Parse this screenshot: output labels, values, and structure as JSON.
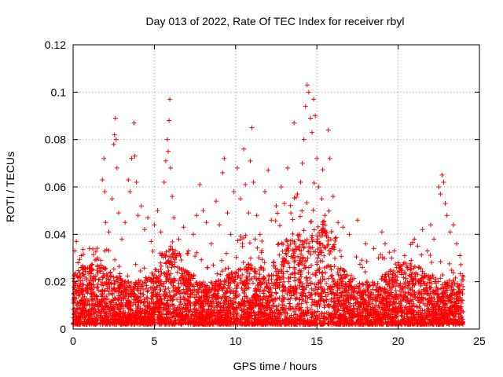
{
  "chart_data": {
    "type": "scatter",
    "title": "Day 013 of 2022, Rate Of TEC Index for receiver rbyl",
    "xlabel": "GPS time / hours",
    "ylabel": "ROTI / TECUs",
    "xlim": [
      0,
      25
    ],
    "ylim": [
      0,
      0.12
    ],
    "x_ticks": [
      0,
      5,
      10,
      15,
      20,
      25
    ],
    "x_tick_labels": [
      "0",
      "5",
      "10",
      "15",
      "20",
      "25"
    ],
    "y_ticks": [
      0,
      0.02,
      0.04,
      0.06,
      0.08,
      0.1,
      0.12
    ],
    "y_tick_labels": [
      "0",
      "0.02",
      "0.04",
      "0.06",
      "0.08",
      "0.1",
      "0.12"
    ],
    "grid": true,
    "marker": "plus",
    "color": "#ff0000",
    "series": [
      {
        "points": [
          [
            0.1,
            0.033
          ],
          [
            0.2,
            0.037
          ],
          [
            0.3,
            0.028
          ],
          [
            0.5,
            0.031
          ],
          [
            0.7,
            0.026
          ],
          [
            1.0,
            0.034
          ],
          [
            1.2,
            0.025
          ],
          [
            1.5,
            0.03
          ],
          [
            1.7,
            0.027
          ],
          [
            1.8,
            0.063
          ],
          [
            1.9,
            0.072
          ],
          [
            1.95,
            0.058
          ],
          [
            2.0,
            0.045
          ],
          [
            2.2,
            0.041
          ],
          [
            2.4,
            0.055
          ],
          [
            2.5,
            0.078
          ],
          [
            2.55,
            0.082
          ],
          [
            2.6,
            0.089
          ],
          [
            2.65,
            0.08
          ],
          [
            2.7,
            0.068
          ],
          [
            2.8,
            0.049
          ],
          [
            3.0,
            0.038
          ],
          [
            3.2,
            0.045
          ],
          [
            3.4,
            0.063
          ],
          [
            3.5,
            0.058
          ],
          [
            3.6,
            0.072
          ],
          [
            3.75,
            0.087
          ],
          [
            3.8,
            0.073
          ],
          [
            3.9,
            0.062
          ],
          [
            4.0,
            0.048
          ],
          [
            4.2,
            0.052
          ],
          [
            4.4,
            0.042
          ],
          [
            4.6,
            0.047
          ],
          [
            4.8,
            0.037
          ],
          [
            5.0,
            0.044
          ],
          [
            5.2,
            0.05
          ],
          [
            5.4,
            0.041
          ],
          [
            5.6,
            0.062
          ],
          [
            5.7,
            0.071
          ],
          [
            5.8,
            0.08
          ],
          [
            5.85,
            0.075
          ],
          [
            5.9,
            0.088
          ],
          [
            5.95,
            0.097
          ],
          [
            6.0,
            0.068
          ],
          [
            6.1,
            0.056
          ],
          [
            6.2,
            0.047
          ],
          [
            6.5,
            0.038
          ],
          [
            6.8,
            0.043
          ],
          [
            7.1,
            0.033
          ],
          [
            7.4,
            0.04
          ],
          [
            7.6,
            0.048
          ],
          [
            7.8,
            0.061
          ],
          [
            8.0,
            0.05
          ],
          [
            8.2,
            0.045
          ],
          [
            8.5,
            0.036
          ],
          [
            8.8,
            0.054
          ],
          [
            9.0,
            0.044
          ],
          [
            9.2,
            0.066
          ],
          [
            9.3,
            0.072
          ],
          [
            9.5,
            0.049
          ],
          [
            9.7,
            0.04
          ],
          [
            9.9,
            0.058
          ],
          [
            10.1,
            0.068
          ],
          [
            10.3,
            0.055
          ],
          [
            10.5,
            0.076
          ],
          [
            10.6,
            0.061
          ],
          [
            10.8,
            0.049
          ],
          [
            10.9,
            0.071
          ],
          [
            11.0,
            0.085
          ],
          [
            11.1,
            0.062
          ],
          [
            11.3,
            0.048
          ],
          [
            11.5,
            0.04
          ],
          [
            11.8,
            0.058
          ],
          [
            12.0,
            0.067
          ],
          [
            12.2,
            0.046
          ],
          [
            12.5,
            0.052
          ],
          [
            12.8,
            0.06
          ],
          [
            13.0,
            0.053
          ],
          [
            13.2,
            0.068
          ],
          [
            13.4,
            0.049
          ],
          [
            13.6,
            0.087
          ],
          [
            13.8,
            0.057
          ],
          [
            14.0,
            0.062
          ],
          [
            14.1,
            0.07
          ],
          [
            14.2,
            0.08
          ],
          [
            14.3,
            0.094
          ],
          [
            14.4,
            0.103
          ],
          [
            14.5,
            0.1
          ],
          [
            14.6,
            0.089
          ],
          [
            14.7,
            0.083
          ],
          [
            14.8,
            0.097
          ],
          [
            14.9,
            0.09
          ],
          [
            15.0,
            0.072
          ],
          [
            15.1,
            0.06
          ],
          [
            15.3,
            0.055
          ],
          [
            15.5,
            0.048
          ],
          [
            15.7,
            0.084
          ],
          [
            15.8,
            0.072
          ],
          [
            16.0,
            0.056
          ],
          [
            16.3,
            0.045
          ],
          [
            16.6,
            0.043
          ],
          [
            17.0,
            0.04
          ],
          [
            17.5,
            0.046
          ],
          [
            18.0,
            0.036
          ],
          [
            18.5,
            0.034
          ],
          [
            19.0,
            0.041
          ],
          [
            19.2,
            0.036
          ],
          [
            19.6,
            0.03
          ],
          [
            20.0,
            0.028
          ],
          [
            20.4,
            0.031
          ],
          [
            20.8,
            0.029
          ],
          [
            21.0,
            0.038
          ],
          [
            21.2,
            0.035
          ],
          [
            21.5,
            0.042
          ],
          [
            21.8,
            0.033
          ],
          [
            22.0,
            0.044
          ],
          [
            22.2,
            0.038
          ],
          [
            22.5,
            0.06
          ],
          [
            22.6,
            0.057
          ],
          [
            22.7,
            0.065
          ],
          [
            22.8,
            0.062
          ],
          [
            22.9,
            0.053
          ],
          [
            23.0,
            0.048
          ],
          [
            23.2,
            0.041
          ],
          [
            23.4,
            0.044
          ],
          [
            23.6,
            0.036
          ],
          [
            23.8,
            0.031
          ],
          [
            24.0,
            0.022
          ]
        ]
      }
    ]
  }
}
